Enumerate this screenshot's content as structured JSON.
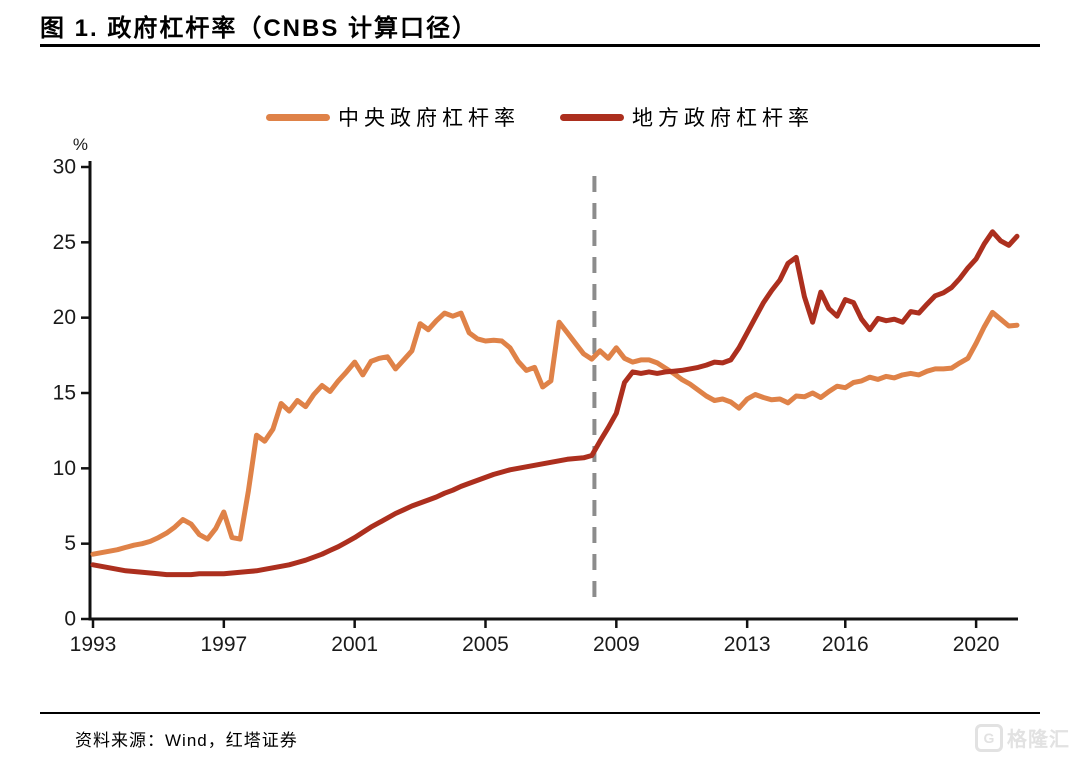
{
  "header": {
    "title": "图 1. 政府杠杆率（CNBS 计算口径）"
  },
  "legend": {
    "items": [
      {
        "label": "中央政府杠杆率",
        "color": "#DF8248"
      },
      {
        "label": "地方政府杠杆率",
        "color": "#AC2F1E"
      }
    ]
  },
  "footer": {
    "source": "资料来源：Wind，红塔证券"
  },
  "watermark": {
    "logo_letter": "G",
    "logo_text": "格隆汇"
  },
  "chart_data": {
    "type": "line",
    "title": "图 1. 政府杠杆率（CNBS 计算口径）",
    "ylabel": "%",
    "unit_label": "%",
    "grid": false,
    "legend_position": "top",
    "y_axis": {
      "min": 0,
      "max": 30,
      "ticks": [
        0,
        5,
        10,
        15,
        20,
        25,
        30
      ]
    },
    "x_axis": {
      "start_year": 1993,
      "end_year": 2021.25,
      "step_years": 0.25,
      "tick_years": [
        1993,
        1997,
        2001,
        2005,
        2009,
        2013,
        2016,
        2020
      ],
      "tick_labels": [
        "1993",
        "1997",
        "2001",
        "2005",
        "2009",
        "2013",
        "2016",
        "2020"
      ]
    },
    "reference_line": {
      "x_year": 2008.33,
      "style": "dashed",
      "color": "#8C8C8C"
    },
    "axis_color": "#111111",
    "series": [
      {
        "name": "中央政府杠杆率",
        "color": "#DF8248",
        "values": [
          4.3,
          4.4,
          4.5,
          4.6,
          4.75,
          4.9,
          5.0,
          5.15,
          5.4,
          5.7,
          6.1,
          6.6,
          6.3,
          5.6,
          5.3,
          6.0,
          7.1,
          5.4,
          5.3,
          8.5,
          12.2,
          11.8,
          12.6,
          14.3,
          13.8,
          14.5,
          14.1,
          14.9,
          15.5,
          15.1,
          15.8,
          16.4,
          17.05,
          16.2,
          17.1,
          17.3,
          17.4,
          16.6,
          17.2,
          17.8,
          19.6,
          19.2,
          19.8,
          20.3,
          20.1,
          20.3,
          19.0,
          18.6,
          18.45,
          18.5,
          18.45,
          18.0,
          17.1,
          16.5,
          16.7,
          15.4,
          15.8,
          19.7,
          19.0,
          18.3,
          17.6,
          17.25,
          17.8,
          17.3,
          18.0,
          17.3,
          17.05,
          17.2,
          17.2,
          17.0,
          16.65,
          16.3,
          15.9,
          15.6,
          15.2,
          14.8,
          14.5,
          14.6,
          14.4,
          14.0,
          14.6,
          14.9,
          14.7,
          14.55,
          14.6,
          14.35,
          14.8,
          14.75,
          15.0,
          14.7,
          15.1,
          15.45,
          15.35,
          15.7,
          15.8,
          16.05,
          15.9,
          16.1,
          16.0,
          16.2,
          16.3,
          16.2,
          16.45,
          16.6,
          16.6,
          16.65,
          17.0,
          17.3,
          18.3,
          19.4,
          20.35,
          19.9,
          19.45,
          19.5
        ]
      },
      {
        "name": "地方政府杠杆率",
        "color": "#AC2F1E",
        "values": [
          3.6,
          3.5,
          3.4,
          3.3,
          3.2,
          3.15,
          3.1,
          3.05,
          3.0,
          2.95,
          2.95,
          2.95,
          2.95,
          3.0,
          3.0,
          3.0,
          3.0,
          3.05,
          3.1,
          3.15,
          3.2,
          3.3,
          3.4,
          3.5,
          3.6,
          3.75,
          3.9,
          4.1,
          4.3,
          4.55,
          4.8,
          5.1,
          5.4,
          5.75,
          6.1,
          6.4,
          6.7,
          7.0,
          7.25,
          7.5,
          7.7,
          7.9,
          8.1,
          8.35,
          8.55,
          8.8,
          9.0,
          9.2,
          9.4,
          9.6,
          9.75,
          9.9,
          10.0,
          10.1,
          10.2,
          10.3,
          10.4,
          10.5,
          10.6,
          10.65,
          10.7,
          10.85,
          11.8,
          12.7,
          13.65,
          15.7,
          16.4,
          16.3,
          16.4,
          16.3,
          16.4,
          16.45,
          16.5,
          16.6,
          16.7,
          16.85,
          17.05,
          17.0,
          17.2,
          18.0,
          19.0,
          20.0,
          21.0,
          21.8,
          22.5,
          23.6,
          24.0,
          21.4,
          19.7,
          21.7,
          20.6,
          20.1,
          21.2,
          21.0,
          19.9,
          19.2,
          19.95,
          19.8,
          19.9,
          19.7,
          20.4,
          20.3,
          20.9,
          21.45,
          21.65,
          22.0,
          22.6,
          23.3,
          23.9,
          24.9,
          25.7,
          25.1,
          24.8,
          25.4
        ]
      }
    ]
  }
}
